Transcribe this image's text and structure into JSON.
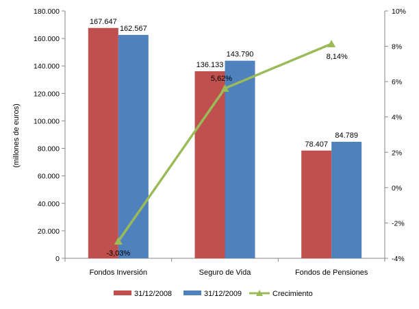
{
  "chart_data": {
    "type": "bar",
    "combo": "bar+line",
    "categories": [
      "Fondos Inversión",
      "Seguro de Vida",
      "Fondos de Pensiones"
    ],
    "series": [
      {
        "name": "31/12/2008",
        "type": "bar",
        "axis": "left",
        "color": "#c0504d",
        "values": [
          167647,
          136133,
          78407
        ],
        "labels": [
          "167.647",
          "136.133",
          "78.407"
        ]
      },
      {
        "name": "31/12/2009",
        "type": "bar",
        "axis": "left",
        "color": "#4f81bd",
        "values": [
          162567,
          143790,
          84789
        ],
        "labels": [
          "162.567",
          "143.790",
          "84.789"
        ]
      },
      {
        "name": "Crecimiento",
        "type": "line",
        "axis": "right",
        "color": "#9bbb59",
        "values": [
          -3.03,
          5.62,
          8.14
        ],
        "labels": [
          "-3,03%",
          "5,62%",
          "8,14%"
        ]
      }
    ],
    "ylabel": "(millones de euros)",
    "ylim": [
      0,
      180000
    ],
    "yticks": [
      "0",
      "20.000",
      "40.000",
      "60.000",
      "80.000",
      "100.000",
      "120.000",
      "140.000",
      "160.000",
      "180.000"
    ],
    "y2lim": [
      -4,
      10
    ],
    "y2ticks": [
      "-4%",
      "-2%",
      "0%",
      "2%",
      "4%",
      "6%",
      "8%",
      "10%"
    ],
    "grid": false,
    "legend_position": "bottom"
  }
}
